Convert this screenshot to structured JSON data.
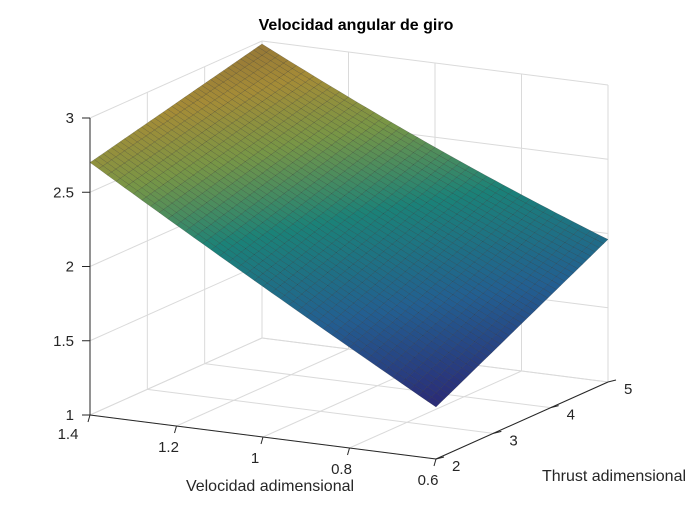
{
  "chart_data": {
    "type": "surface",
    "title": "Velocidad angular de giro",
    "xlabel": "Velocidad adimensional",
    "ylabel": "Thrust adimensional",
    "zlabel": "",
    "xlim": [
      0.6,
      1.4
    ],
    "ylim": [
      2,
      5
    ],
    "zlim": [
      1,
      3
    ],
    "x_ticks": [
      "0.6",
      "0.8",
      "1",
      "1.2",
      "1.4"
    ],
    "y_ticks": [
      "2",
      "3",
      "4",
      "5"
    ],
    "z_ticks": [
      "1",
      "1.5",
      "2",
      "2.5",
      "3"
    ],
    "grid": true,
    "colormap": "parula-dark",
    "corners": [
      {
        "x": 1.4,
        "y": 2,
        "z": 2.7
      },
      {
        "x": 1.4,
        "y": 5,
        "z": 2.98
      },
      {
        "x": 0.6,
        "y": 2,
        "z": 1.35
      },
      {
        "x": 0.6,
        "y": 5,
        "z": 1.96
      }
    ]
  }
}
